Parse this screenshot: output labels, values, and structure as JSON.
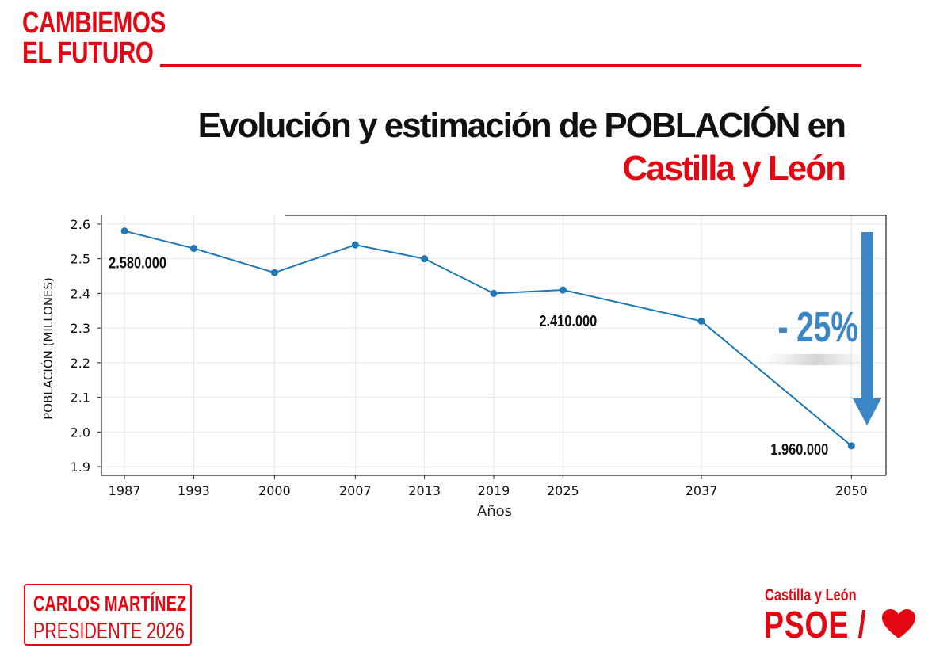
{
  "header": {
    "slogan_line1": "CAMBIEMOS",
    "slogan_line2": "EL FUTURO",
    "title_line1": "Evolución y estimación  de POBLACIÓN en",
    "title_line2": "Castilla y León"
  },
  "footer": {
    "candidate_name": "CARLOS MARTÍNEZ",
    "candidate_role": "PRESIDENTE 2026",
    "party_region": "Castilla y León",
    "party_brand": "PSOE /",
    "party_logo_icon": "heart-icon"
  },
  "colors": {
    "brand_red": "#e30613",
    "series_blue": "#1f77b4",
    "arrow_blue": "#3b86c6"
  },
  "chart_data": {
    "type": "line",
    "title": "",
    "xlabel": "Años",
    "ylabel": "POBLACIÓN (MILLONES)",
    "ylim": [
      1.9,
      2.6
    ],
    "yticks": [
      "1.9",
      "2.0",
      "2.1",
      "2.2",
      "2.3",
      "2.4",
      "2.5",
      "2.6"
    ],
    "grid": true,
    "series": [
      {
        "x": [
          1987,
          1993,
          2000,
          2007,
          2013,
          2019,
          2025,
          2037,
          2050
        ],
        "values": [
          2.58,
          2.53,
          2.46,
          2.54,
          2.5,
          2.4,
          2.41,
          2.32,
          1.96
        ]
      }
    ],
    "xticks": [
      "1987",
      "1993",
      "2000",
      "2007",
      "2013",
      "2019",
      "2025",
      "2037",
      "2050"
    ],
    "annotations": [
      {
        "year": 1987,
        "text": "2.580.000"
      },
      {
        "year": 2025,
        "text": "2.410.000"
      },
      {
        "year": 2050,
        "text": "1.960.000"
      }
    ],
    "change_label": "- 25%"
  }
}
